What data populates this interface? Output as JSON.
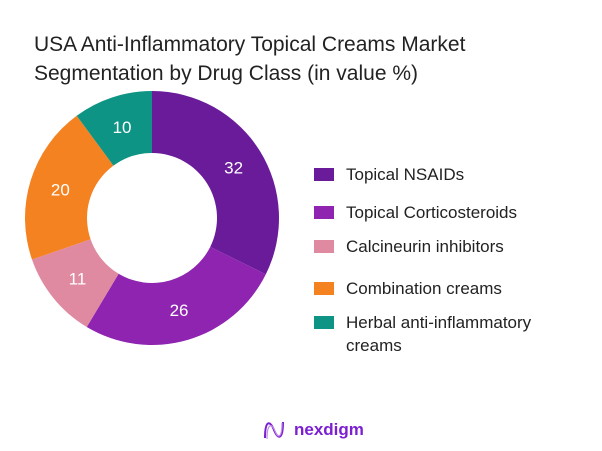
{
  "chart_data": {
    "type": "pie",
    "variant": "donut",
    "title": "USA Anti-Inflammatory Topical Creams Market Segmentation by Drug Class (in value %)",
    "categories": [
      "Topical NSAIDs",
      "Topical Corticosteroids",
      "Calcineurin inhibitors",
      "Combination creams",
      "Herbal anti-inflammatory creams"
    ],
    "values": [
      32,
      26,
      11,
      20,
      10
    ],
    "colors": [
      "#6a1b9a",
      "#8e24b0",
      "#e08aa2",
      "#f58220",
      "#0e9484"
    ],
    "data_labels": [
      "32",
      "26",
      "11",
      "20",
      "10"
    ],
    "legend_placement": "right",
    "start_angle": "top, clockwise"
  },
  "brand": {
    "name": "nexdigm",
    "color": "#7b1fd1"
  }
}
